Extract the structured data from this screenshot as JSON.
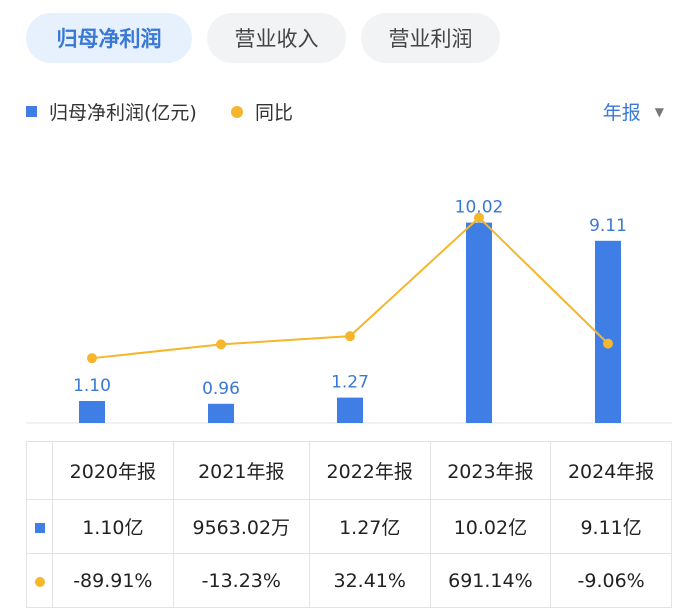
{
  "tabs": [
    {
      "label": "归母净利润",
      "active": true
    },
    {
      "label": "营业收入",
      "active": false
    },
    {
      "label": "营业利润",
      "active": false
    }
  ],
  "legend": {
    "bar_label": "归母净利润(亿元)",
    "line_label": "同比"
  },
  "period_select": {
    "label": "年报"
  },
  "colors": {
    "bar": "#3f7fe5",
    "line": "#f5b62c",
    "negative": "#2a9a66",
    "positive": "#e04848",
    "accent": "#3a78d6"
  },
  "chart_data": {
    "type": "bar",
    "categories": [
      "2020年报",
      "2021年报",
      "2022年报",
      "2023年报",
      "2024年报"
    ],
    "series": [
      {
        "name": "归母净利润(亿元)",
        "type": "bar",
        "values": [
          1.1,
          0.96,
          1.27,
          10.02,
          9.11
        ],
        "data_labels": [
          "1.10",
          "0.96",
          "1.27",
          "10.02",
          "9.11"
        ]
      },
      {
        "name": "同比",
        "type": "line",
        "values": [
          -89.91,
          -13.23,
          32.41,
          691.14,
          -9.06
        ]
      }
    ],
    "ylim": [
      0,
      12
    ]
  },
  "table": {
    "headers": [
      "2020年报",
      "2021年报",
      "2022年报",
      "2023年报",
      "2024年报"
    ],
    "profit_row": [
      "1.10亿",
      "9563.02万",
      "1.27亿",
      "10.02亿",
      "9.11亿"
    ],
    "yoy_row": [
      "-89.91%",
      "-13.23%",
      "32.41%",
      "691.14%",
      "-9.06%"
    ]
  }
}
